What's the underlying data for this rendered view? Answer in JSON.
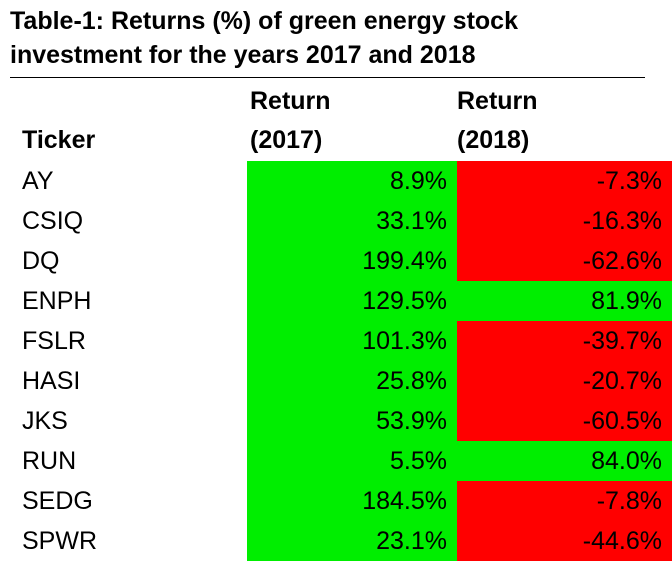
{
  "title": {
    "line1": "Table-1: Returns (%) of green energy stock",
    "line2": "investment for the years 2017 and 2018"
  },
  "columns": {
    "ticker": "Ticker",
    "return_2017": [
      "Return",
      "(2017)"
    ],
    "return_2018": [
      "Return",
      "(2018)"
    ]
  },
  "colors": {
    "positive": "#00ee00",
    "negative": "#ff0000"
  },
  "chart_data": {
    "type": "table",
    "columns": [
      "Ticker",
      "Return (2017)",
      "Return (2018)"
    ],
    "rows": [
      {
        "ticker": "AY",
        "r2017": "8.9%",
        "r2018": "-7.3%"
      },
      {
        "ticker": "CSIQ",
        "r2017": "33.1%",
        "r2018": "-16.3%"
      },
      {
        "ticker": "DQ",
        "r2017": "199.4%",
        "r2018": "-62.6%"
      },
      {
        "ticker": "ENPH",
        "r2017": "129.5%",
        "r2018": "81.9%"
      },
      {
        "ticker": "FSLR",
        "r2017": "101.3%",
        "r2018": "-39.7%"
      },
      {
        "ticker": "HASI",
        "r2017": "25.8%",
        "r2018": "-20.7%"
      },
      {
        "ticker": "JKS",
        "r2017": "53.9%",
        "r2018": "-60.5%"
      },
      {
        "ticker": "RUN",
        "r2017": "5.5%",
        "r2018": "84.0%"
      },
      {
        "ticker": "SEDG",
        "r2017": "184.5%",
        "r2018": "-7.8%"
      },
      {
        "ticker": "SPWR",
        "r2017": "23.1%",
        "r2018": "-44.6%"
      }
    ]
  }
}
